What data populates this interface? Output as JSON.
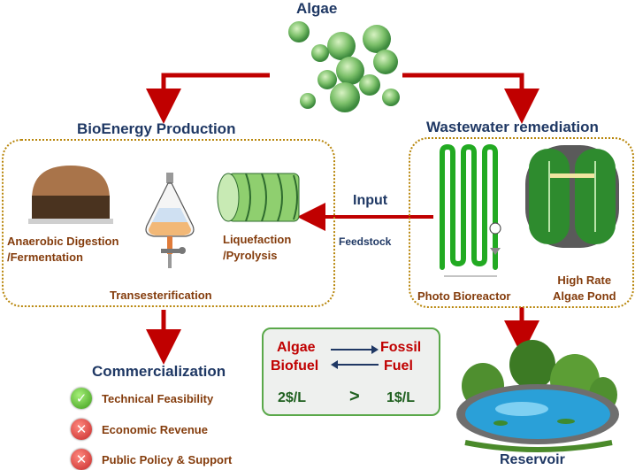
{
  "algae": {
    "title": "Algae"
  },
  "bioenergy": {
    "title": "BioEnergy Production",
    "anaerobic": "Anaerobic Digestion\n/Fermentation",
    "liquefaction": "Liquefaction\n/Pyrolysis",
    "transesterification": "Transesterification"
  },
  "wastewater": {
    "title": "Wastewater remediation",
    "photo_bioreactor": "Photo Bioreactor",
    "high_rate_pond": "High Rate\nAlgae Pond"
  },
  "flow": {
    "input": "Input",
    "feedstock": "Feedstock"
  },
  "commercialization": {
    "title": "Commercialization",
    "items": [
      {
        "label": "Technical Feasibility",
        "status": "check"
      },
      {
        "label": "Economic Revenue",
        "status": "cross"
      },
      {
        "label": "Public Policy & Support",
        "status": "cross"
      }
    ]
  },
  "comparison": {
    "left_top": "Algae",
    "left_bottom": "Biofuel",
    "right_top": "Fossil",
    "right_bottom": "Fuel",
    "left_price": "2$/L",
    "operator": ">",
    "right_price": "1$/L"
  },
  "reservoir": {
    "title": "Reservoir"
  },
  "colors": {
    "arrow": "#c00000",
    "box_border": "#b8860b",
    "pond": "#2e8b2e",
    "reactor": "#22aa22"
  }
}
